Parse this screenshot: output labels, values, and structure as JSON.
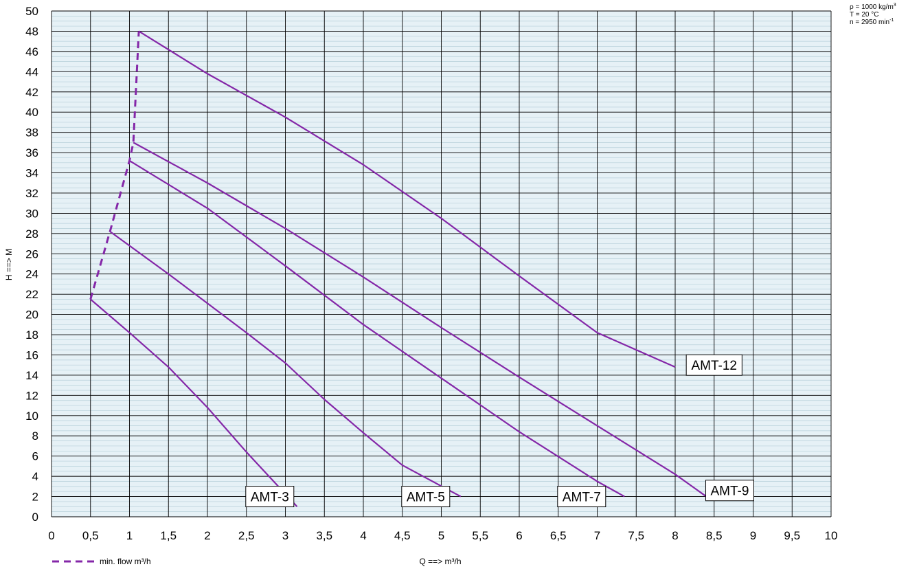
{
  "chart_data": {
    "type": "line",
    "xlabel": "Q ==> m³/h",
    "ylabel": "H ==> M",
    "xlim": [
      0,
      10
    ],
    "ylim": [
      0,
      50
    ],
    "x_ticks": [
      "0",
      "0,5",
      "1",
      "1,5",
      "2",
      "2,5",
      "3",
      "3,5",
      "4",
      "4,5",
      "5",
      "5,5",
      "6",
      "6,5",
      "7",
      "7,5",
      "8",
      "8,5",
      "9",
      "9,5",
      "10"
    ],
    "y_ticks": [
      "0",
      "2",
      "4",
      "6",
      "8",
      "10",
      "12",
      "14",
      "16",
      "18",
      "20",
      "22",
      "24",
      "26",
      "28",
      "30",
      "32",
      "34",
      "36",
      "38",
      "40",
      "42",
      "44",
      "46",
      "48",
      "50"
    ],
    "grid": true,
    "conditions": [
      {
        "label": "ρ  =  1000 kg/m",
        "sup": "3"
      },
      {
        "label": "T  =  20 °C",
        "sup": ""
      },
      {
        "label": "n  =  2950 min",
        "sup": "-1"
      }
    ],
    "series": [
      {
        "name": "AMT-3",
        "x": [
          0.5,
          1.0,
          1.5,
          2.0,
          2.5,
          3.15
        ],
        "y": [
          21.5,
          18.2,
          14.8,
          10.8,
          6.4,
          1.0
        ]
      },
      {
        "name": "AMT-5",
        "x": [
          0.75,
          1.5,
          2.0,
          2.5,
          3.0,
          3.5,
          4.0,
          4.5,
          5.25
        ],
        "y": [
          28.2,
          24.0,
          21.1,
          18.2,
          15.2,
          11.6,
          8.3,
          5.1,
          2.0
        ]
      },
      {
        "name": "AMT-7",
        "x": [
          1.0,
          2.0,
          3.0,
          4.0,
          5.0,
          6.0,
          7.0,
          7.35
        ],
        "y": [
          35.2,
          30.5,
          24.8,
          19.0,
          13.7,
          8.4,
          3.5,
          2.0
        ]
      },
      {
        "name": "AMT-9",
        "x": [
          1.05,
          2.0,
          3.0,
          4.0,
          5.0,
          6.0,
          7.0,
          8.0,
          8.4
        ],
        "y": [
          37.0,
          33.0,
          28.5,
          23.7,
          18.7,
          13.8,
          9.0,
          4.2,
          2.0
        ]
      },
      {
        "name": "AMT-12",
        "x": [
          1.12,
          2.0,
          3.0,
          4.0,
          5.0,
          6.0,
          7.0,
          8.0
        ],
        "y": [
          48.0,
          43.8,
          39.5,
          34.8,
          29.5,
          23.8,
          18.2,
          14.8
        ]
      }
    ],
    "min_flow": {
      "name": "min. flow m³/h",
      "x": [
        0.5,
        0.75,
        1.0,
        1.05,
        1.12
      ],
      "y": [
        21.5,
        28.2,
        35.2,
        37.0,
        48.0
      ]
    },
    "curve_color": "#8427a8",
    "plot_bg": "#e6f1f6",
    "labels": [
      {
        "text": "AMT-3",
        "x": 2.8,
        "y": 2.0
      },
      {
        "text": "AMT-5",
        "x": 4.8,
        "y": 2.0
      },
      {
        "text": "AMT-7",
        "x": 6.8,
        "y": 2.0
      },
      {
        "text": "AMT-9",
        "x": 8.7,
        "y": 2.6
      },
      {
        "text": "AMT-12",
        "x": 8.5,
        "y": 15.0
      }
    ]
  }
}
